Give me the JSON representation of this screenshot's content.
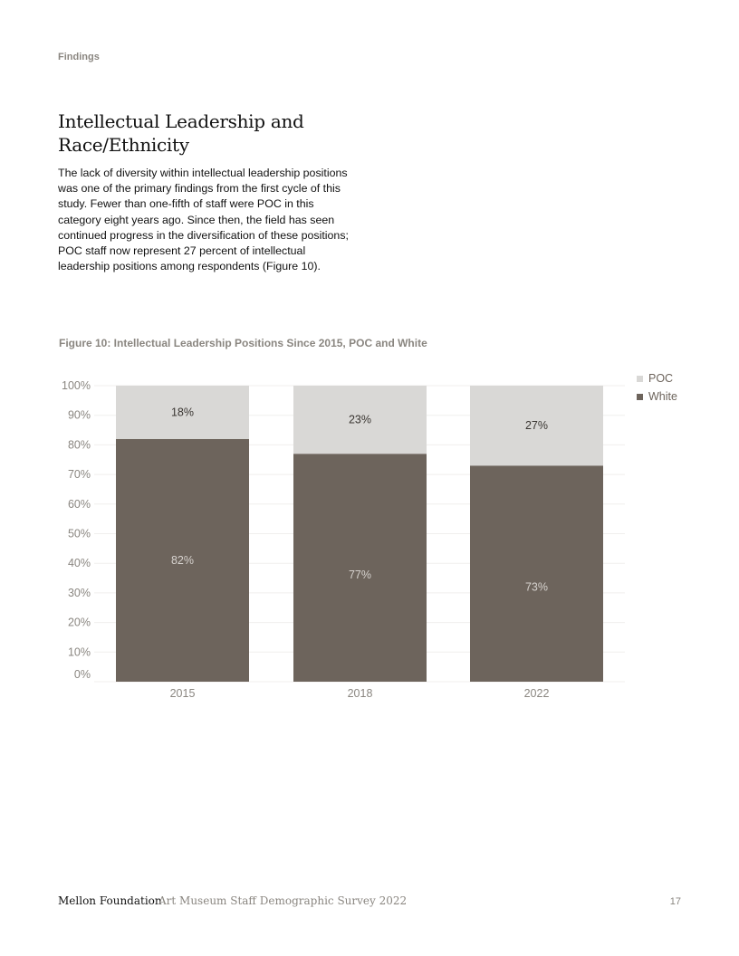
{
  "header": {
    "section": "Findings"
  },
  "article": {
    "title": "Intellectual Leadership and Race/Ethnicity",
    "body": "The lack of diversity within intellectual leadership positions was one of the primary findings from the first cycle of this study. Fewer than one-fifth of staff were POC in this category eight years ago. Since then, the field has seen continued progress in the diversification of these positions; POC staff now represent 27 percent of intellectual leadership positions among respondents (Figure 10)."
  },
  "figure": {
    "title": "Figure 10: Intellectual Leadership Positions Since 2015, POC and White"
  },
  "chart_data": {
    "type": "bar",
    "stacked": true,
    "title": "Figure 10: Intellectual Leadership Positions Since 2015, POC and White",
    "categories": [
      "2015",
      "2018",
      "2022"
    ],
    "series": [
      {
        "name": "White",
        "values": [
          82,
          77,
          73
        ],
        "labels": [
          "82%",
          "77%",
          "73%"
        ],
        "color": "#6d645c"
      },
      {
        "name": "POC",
        "values": [
          18,
          23,
          27
        ],
        "labels": [
          "18%",
          "23%",
          "27%"
        ],
        "color": "#d9d8d6"
      }
    ],
    "legend": [
      "POC",
      "White"
    ],
    "legend_position": "top-right",
    "ylim": [
      0,
      100
    ],
    "yticks": [
      "0%",
      "10%",
      "20%",
      "30%",
      "40%",
      "50%",
      "60%",
      "70%",
      "80%",
      "90%",
      "100%"
    ],
    "xlabel": "",
    "ylabel": "",
    "grid": true
  },
  "footer": {
    "org": "Mellon Foundation",
    "publication": "Art Museum Staff Demographic Survey 2022",
    "page_number": "17"
  }
}
